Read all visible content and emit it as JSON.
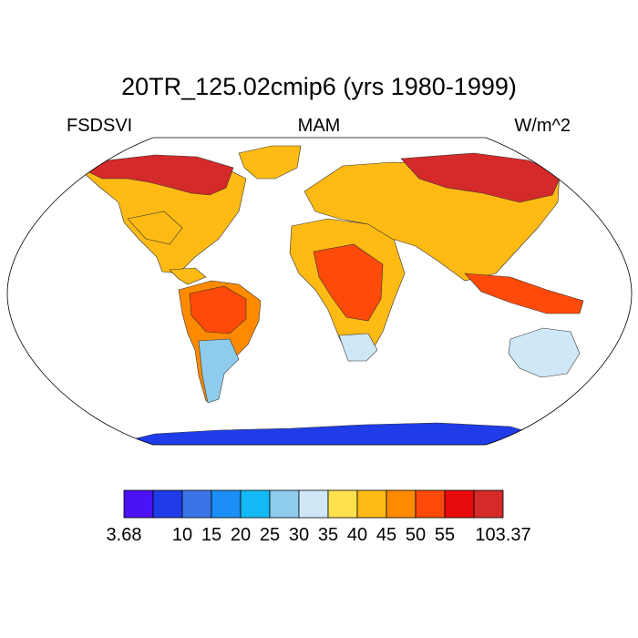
{
  "title": "20TR_125.02cmip6 (yrs 1980-1999)",
  "left_label": "FSDSVI",
  "center_label": "MAM",
  "right_label": "W/m^2",
  "colorbar": {
    "colors": [
      "#4a12f5",
      "#1f3ce8",
      "#3a75e8",
      "#1b8ff5",
      "#14baf5",
      "#8ecbec",
      "#cfe8f8",
      "#ffe14d",
      "#ffbb14",
      "#ff8a00",
      "#ff4a0a",
      "#e80a0a",
      "#d42a2a"
    ],
    "labels": [
      "3.68",
      "10",
      "15",
      "20",
      "25",
      "30",
      "35",
      "40",
      "45",
      "50",
      "55",
      "103.37"
    ],
    "label_positions": [
      "edge0",
      "edge2",
      "edge3",
      "edge4",
      "edge5",
      "edge6",
      "edge7",
      "edge8",
      "edge9",
      "edge10",
      "edge11",
      "edge13"
    ]
  },
  "map_regions": [
    {
      "name": "north-america",
      "color": "#ffbb14"
    },
    {
      "name": "canada-arctic",
      "color": "#d42a2a"
    },
    {
      "name": "greenland",
      "color": "#ffbb14"
    },
    {
      "name": "south-america",
      "color": "#ff8a00"
    },
    {
      "name": "amazon",
      "color": "#ff4a0a"
    },
    {
      "name": "patagonia",
      "color": "#8ecbec"
    },
    {
      "name": "africa",
      "color": "#ffbb14"
    },
    {
      "name": "central-africa",
      "color": "#ff4a0a"
    },
    {
      "name": "south-africa",
      "color": "#cfe8f8"
    },
    {
      "name": "eurasia",
      "color": "#ffbb14"
    },
    {
      "name": "siberia",
      "color": "#d42a2a"
    },
    {
      "name": "southeast-asia",
      "color": "#ff4a0a"
    },
    {
      "name": "australia",
      "color": "#cfe8f8"
    },
    {
      "name": "antarctica",
      "color": "#1f3ce8"
    }
  ]
}
